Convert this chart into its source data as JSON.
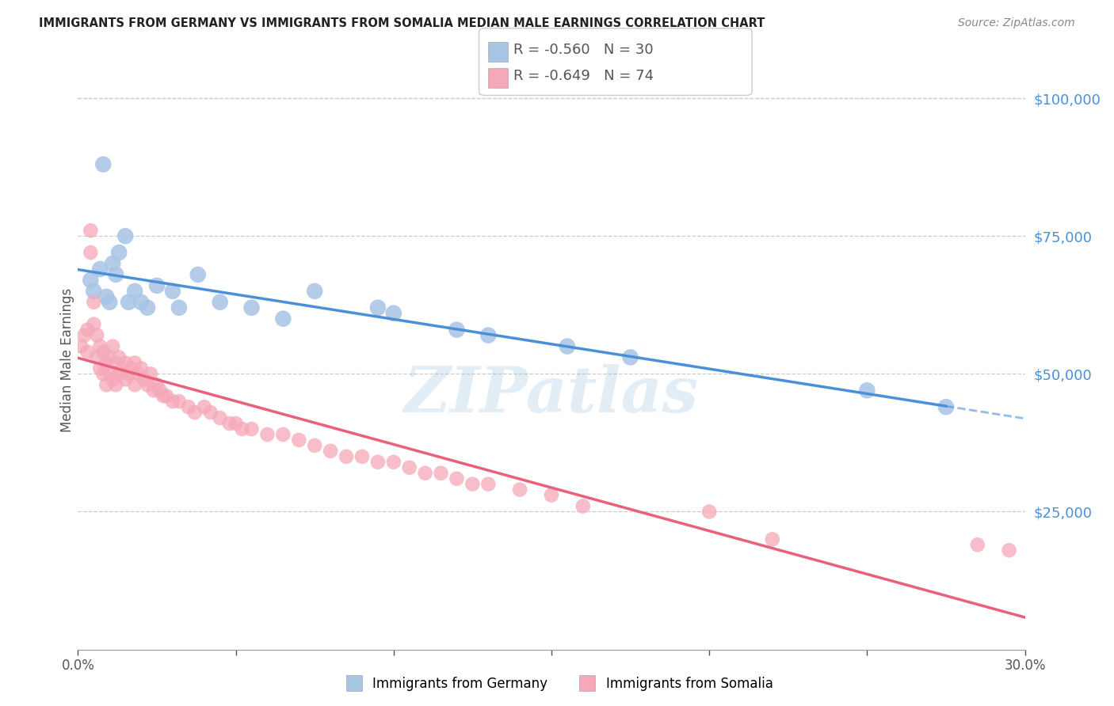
{
  "title": "IMMIGRANTS FROM GERMANY VS IMMIGRANTS FROM SOMALIA MEDIAN MALE EARNINGS CORRELATION CHART",
  "source": "Source: ZipAtlas.com",
  "ylabel": "Median Male Earnings",
  "xlim": [
    0.0,
    0.3
  ],
  "ylim": [
    0,
    105000
  ],
  "germany_R": "-0.560",
  "germany_N": "30",
  "somalia_R": "-0.649",
  "somalia_N": "74",
  "germany_color": "#a8c4e5",
  "somalia_color": "#f5a8b8",
  "germany_line_color": "#4a90d9",
  "somalia_line_color": "#e8607a",
  "watermark": "ZIPatlas",
  "watermark_color_r": 180,
  "watermark_color_g": 210,
  "watermark_color_b": 235,
  "germany_scatter_x": [
    0.004,
    0.005,
    0.007,
    0.008,
    0.009,
    0.01,
    0.011,
    0.012,
    0.013,
    0.015,
    0.016,
    0.018,
    0.02,
    0.022,
    0.025,
    0.03,
    0.032,
    0.038,
    0.045,
    0.055,
    0.065,
    0.075,
    0.095,
    0.1,
    0.12,
    0.13,
    0.155,
    0.175,
    0.25,
    0.275
  ],
  "germany_scatter_y": [
    67000,
    65000,
    69000,
    88000,
    64000,
    63000,
    70000,
    68000,
    72000,
    75000,
    63000,
    65000,
    63000,
    62000,
    66000,
    65000,
    62000,
    68000,
    63000,
    62000,
    60000,
    65000,
    62000,
    61000,
    58000,
    57000,
    55000,
    53000,
    47000,
    44000
  ],
  "somalia_scatter_x": [
    0.001,
    0.002,
    0.003,
    0.003,
    0.004,
    0.004,
    0.005,
    0.005,
    0.006,
    0.006,
    0.007,
    0.007,
    0.008,
    0.008,
    0.009,
    0.009,
    0.01,
    0.01,
    0.011,
    0.011,
    0.012,
    0.012,
    0.013,
    0.013,
    0.014,
    0.015,
    0.015,
    0.016,
    0.017,
    0.018,
    0.018,
    0.019,
    0.02,
    0.021,
    0.022,
    0.023,
    0.024,
    0.025,
    0.026,
    0.027,
    0.028,
    0.03,
    0.032,
    0.035,
    0.037,
    0.04,
    0.042,
    0.045,
    0.048,
    0.05,
    0.052,
    0.055,
    0.06,
    0.065,
    0.07,
    0.075,
    0.08,
    0.085,
    0.09,
    0.095,
    0.1,
    0.105,
    0.11,
    0.115,
    0.12,
    0.125,
    0.13,
    0.14,
    0.15,
    0.16,
    0.2,
    0.22,
    0.285,
    0.295
  ],
  "somalia_scatter_y": [
    55000,
    57000,
    58000,
    54000,
    76000,
    72000,
    63000,
    59000,
    57000,
    53000,
    55000,
    51000,
    54000,
    50000,
    52000,
    48000,
    53000,
    50000,
    55000,
    49000,
    52000,
    48000,
    53000,
    50000,
    51000,
    52000,
    49000,
    50000,
    51000,
    52000,
    48000,
    50000,
    51000,
    49000,
    48000,
    50000,
    47000,
    48000,
    47000,
    46000,
    46000,
    45000,
    45000,
    44000,
    43000,
    44000,
    43000,
    42000,
    41000,
    41000,
    40000,
    40000,
    39000,
    39000,
    38000,
    37000,
    36000,
    35000,
    35000,
    34000,
    34000,
    33000,
    32000,
    32000,
    31000,
    30000,
    30000,
    29000,
    28000,
    26000,
    25000,
    20000,
    19000,
    18000
  ]
}
